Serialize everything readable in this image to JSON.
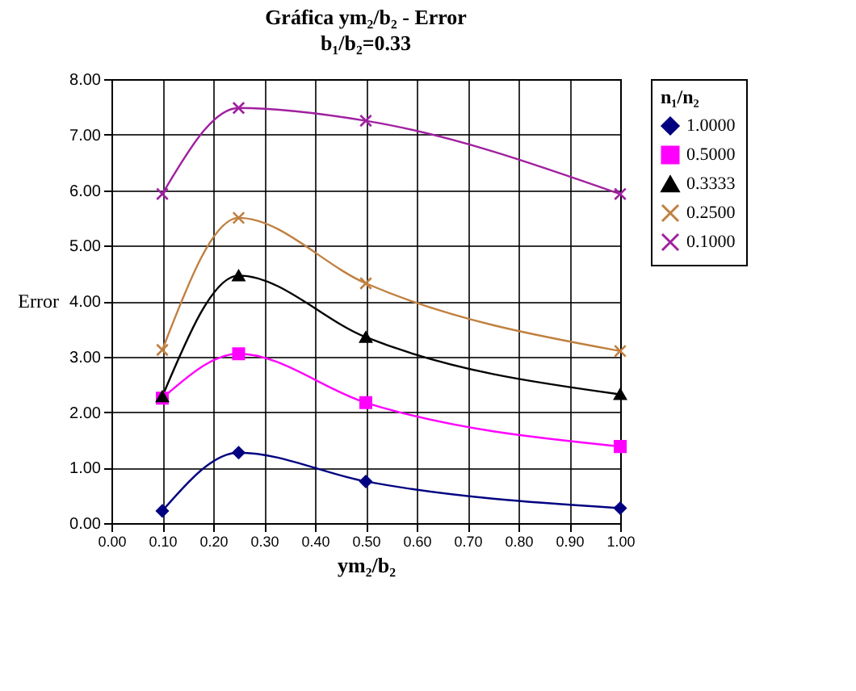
{
  "chart_data": {
    "type": "line",
    "title": "Gráfica ym₂/b₂ - Error",
    "subtitle": "b₁/b₂=0.33",
    "xlabel": "ym₂/b₂",
    "ylabel": "Error",
    "legend_title": "n₁/n₂",
    "x": [
      0.1,
      0.25,
      0.5,
      1.0
    ],
    "series": [
      {
        "name": "1.0000",
        "color": "#000080",
        "marker": "diamond",
        "values": [
          0.22,
          1.27,
          0.75,
          0.27
        ]
      },
      {
        "name": "0.5000",
        "color": "#ff00ff",
        "marker": "square",
        "values": [
          2.25,
          3.05,
          2.17,
          1.38
        ]
      },
      {
        "name": "0.3333",
        "color": "#000000",
        "marker": "triangle",
        "values": [
          2.28,
          4.46,
          3.35,
          2.32
        ]
      },
      {
        "name": "0.2500",
        "color": "#c08040",
        "marker": "cross",
        "values": [
          3.12,
          5.5,
          4.32,
          3.1
        ]
      },
      {
        "name": "0.1000",
        "color": "#a020a0",
        "marker": "cross",
        "values": [
          5.93,
          7.48,
          7.25,
          5.93
        ]
      }
    ],
    "xlim": [
      0,
      1
    ],
    "xticks": [
      {
        "value": 0,
        "label": "0.00"
      },
      {
        "value": 0.1,
        "label": "0.10"
      },
      {
        "value": 0.2,
        "label": "0.20"
      },
      {
        "value": 0.3,
        "label": "0.30"
      },
      {
        "value": 0.4,
        "label": "0.40"
      },
      {
        "value": 0.5,
        "label": "0.50"
      },
      {
        "value": 0.6,
        "label": "0.60"
      },
      {
        "value": 0.7,
        "label": "0.70"
      },
      {
        "value": 0.8,
        "label": "0.80"
      },
      {
        "value": 0.9,
        "label": "0.90"
      },
      {
        "value": 1.0,
        "label": "1.00"
      }
    ],
    "ylim": [
      0,
      8
    ],
    "yticks": [
      {
        "value": 0,
        "label": "0.00"
      },
      {
        "value": 1,
        "label": "1.00"
      },
      {
        "value": 2,
        "label": "2.00"
      },
      {
        "value": 3,
        "label": "3.00"
      },
      {
        "value": 4,
        "label": "4.00"
      },
      {
        "value": 5,
        "label": "5.00"
      },
      {
        "value": 6,
        "label": "6.00"
      },
      {
        "value": 7,
        "label": "7.00"
      },
      {
        "value": 8,
        "label": "8.00"
      }
    ],
    "grid": true,
    "legend": "right",
    "line_style": "solid"
  }
}
